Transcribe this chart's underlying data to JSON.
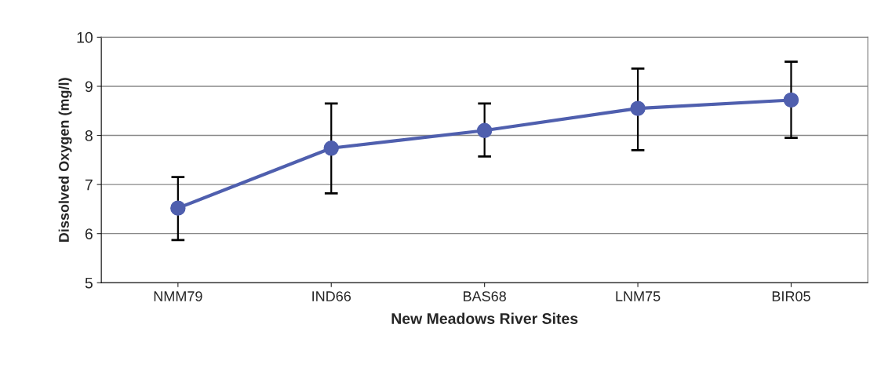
{
  "chart_data": {
    "type": "line",
    "xlabel": "New Meadows River Sites",
    "ylabel": "Dissolved Oxygen (mg/l)",
    "categories": [
      "NMM79",
      "IND66",
      "BAS68",
      "LNM75",
      "BIR05"
    ],
    "series": [
      {
        "color": "#4f5fae",
        "values": [
          6.52,
          7.74,
          8.1,
          8.55,
          8.72
        ],
        "errors": [
          [
            5.87,
            7.15
          ],
          [
            6.82,
            8.65
          ],
          [
            7.57,
            8.65
          ],
          [
            7.7,
            9.36
          ],
          [
            7.95,
            9.5
          ]
        ]
      }
    ],
    "ylim": [
      5,
      10
    ],
    "yticks": [
      5,
      6,
      7,
      8,
      9,
      10
    ],
    "grid": "y",
    "marker": "circle",
    "line_style": "solid"
  }
}
